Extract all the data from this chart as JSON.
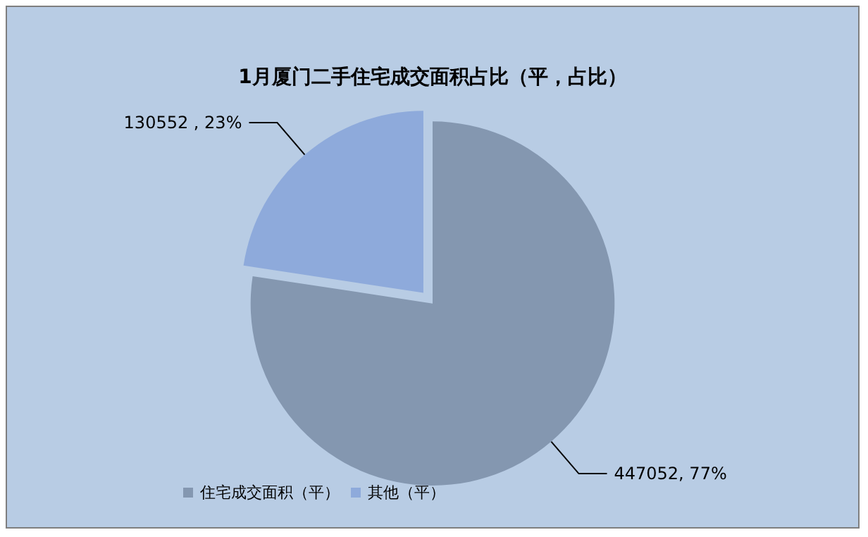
{
  "chart_data": {
    "type": "pie",
    "title": "1月厦门二手住宅成交面积占比（平，占比）",
    "categories": [
      "住宅成交面积（平）",
      "其他（平）"
    ],
    "values": [
      447052,
      130552
    ],
    "colors": [
      "#8497b0",
      "#8eaadb"
    ],
    "value_labels": [
      "447052, 77%",
      "130552 , 23%"
    ],
    "legend": "bottom"
  }
}
